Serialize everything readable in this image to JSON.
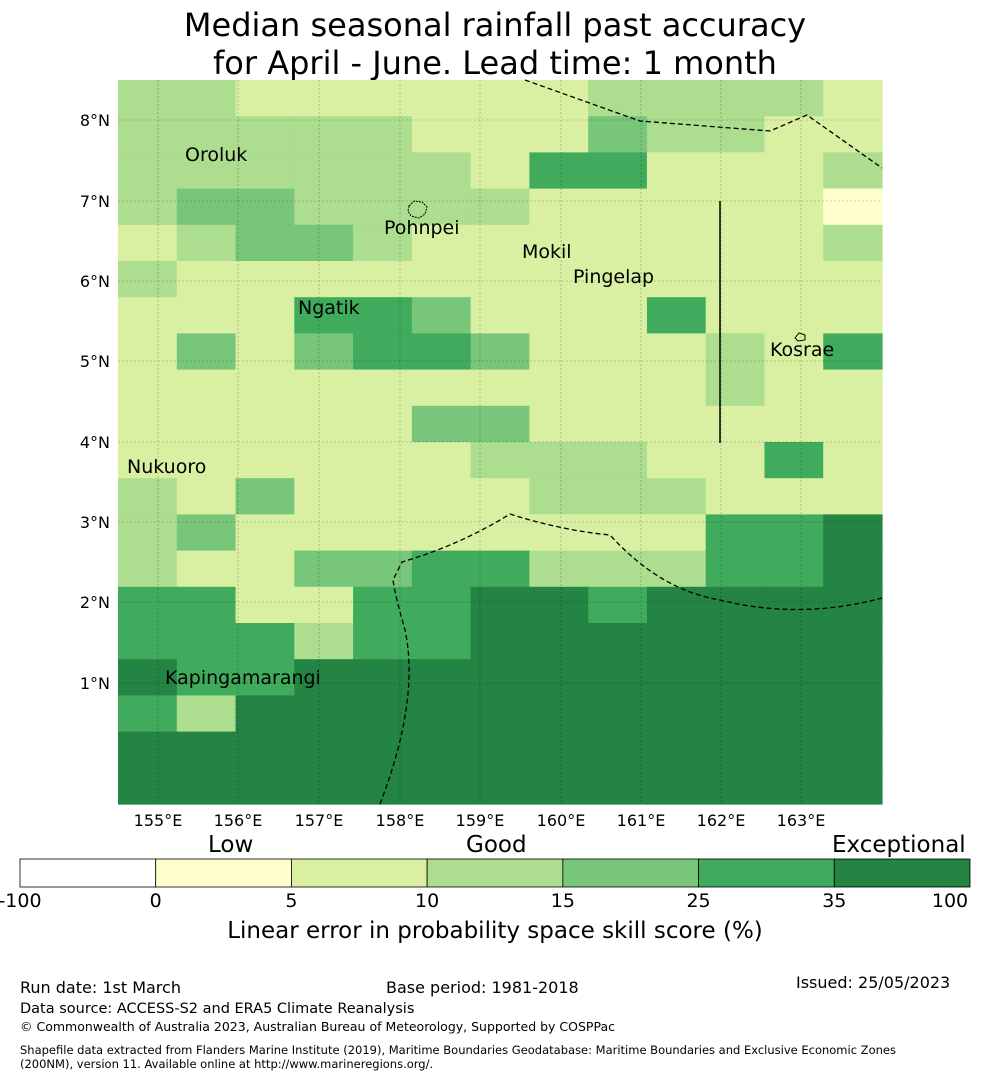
{
  "title": {
    "line1": "Median seasonal rainfall past accuracy",
    "line2": "for April - June. Lead time: 1 month"
  },
  "map": {
    "lat_labels": [
      "8°N",
      "7°N",
      "6°N",
      "5°N",
      "4°N",
      "3°N",
      "2°N",
      "1°N"
    ],
    "lon_labels": [
      "155°E",
      "156°E",
      "157°E",
      "158°E",
      "159°E",
      "160°E",
      "161°E",
      "162°E",
      "163°E"
    ],
    "places": [
      {
        "name": "Oroluk"
      },
      {
        "name": "Pohnpei"
      },
      {
        "name": "Mokil"
      },
      {
        "name": "Pingelap"
      },
      {
        "name": "Ngatik"
      },
      {
        "name": "Kosrae"
      },
      {
        "name": "Nukuoro"
      },
      {
        "name": "Kapingamarangi"
      }
    ],
    "grid_rows_north_to_south": [
      "3322222233332",
      "3333322243322",
      "3333332552223",
      "3443333222221",
      "2344322222223",
      "3222222222222",
      "2225542225222",
      "2424554222325",
      "2222222222322",
      "2222244222222",
      "2222223332252",
      "3242222333222",
      "3422222222556",
      "3224455333556",
      "5522556656666",
      "5553556666666",
      "6556666666666",
      "5366666666666",
      "6666666666666",
      "6666666666666"
    ],
    "colors": {
      "0": "#ffffff",
      "1": "#ffffcc",
      "2": "#d9f0a3",
      "3": "#addd8e",
      "4": "#78c679",
      "5": "#41ab5d",
      "6": "#238443"
    }
  },
  "colorbar": {
    "categories": [
      "Low",
      "Good",
      "Exceptional"
    ],
    "ticks": [
      "-100",
      "0",
      "5",
      "10",
      "15",
      "25",
      "35",
      "100"
    ],
    "colors": [
      "#ffffff",
      "#ffffcc",
      "#d9f0a3",
      "#addd8e",
      "#78c679",
      "#41ab5d",
      "#238443"
    ],
    "label": "Linear error in probability space skill score (%)"
  },
  "footer": {
    "run_date": "Run date: 1st March",
    "base_period": "Base period: 1981-2018",
    "issued": "Issued: 25/05/2023",
    "data_source": "Data source: ACCESS-S2 and ERA5 Climate Reanalysis",
    "copyright": "© Commonwealth of Australia 2023, Australian Bureau of Meteorology, Supported by COSPPac",
    "shapefile_line1": "Shapefile data extracted from Flanders Marine Institute (2019), Maritime Boundaries Geodatabase: Maritime Boundaries and Exclusive Economic Zones",
    "shapefile_line2": "(200NM), version 11. Available online at http://www.marineregions.org/."
  }
}
